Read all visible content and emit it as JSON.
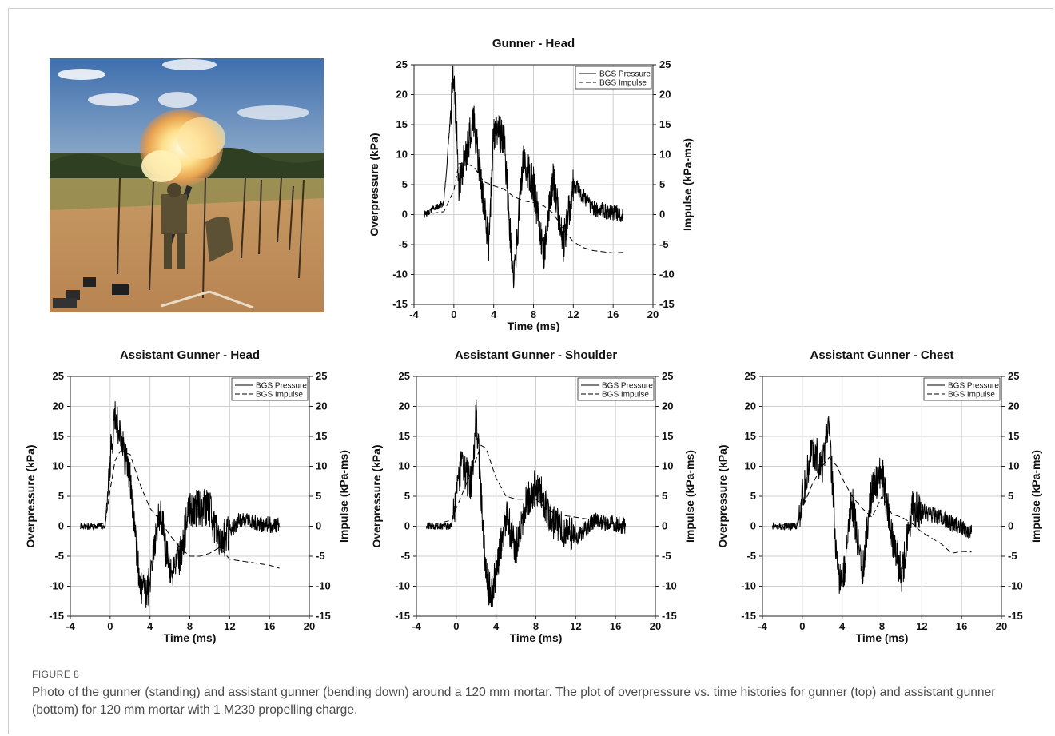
{
  "figure": {
    "label": "FIGURE 8",
    "caption": "Photo of the gunner (standing) and assistant gunner (bending down) around a 120 mm mortar. The plot of overpressure vs. time histories for gunner (top) and assistant gunner (bottom) for 120 mm mortar with 1 M230 propelling charge."
  },
  "photo": {
    "alt_icon": "mortar-firing-photo"
  },
  "chart_data": [
    {
      "id": "gunner-head",
      "type": "line",
      "title": "Gunner - Head",
      "xlabel": "Time (ms)",
      "ylabel": "Overpressure (kPa)",
      "y2label": "Impulse (kPa-ms)",
      "xlim": [
        -4,
        20
      ],
      "ylim": [
        -15,
        25
      ],
      "y2lim": [
        -15,
        25
      ],
      "xticks": [
        -4,
        0,
        4,
        8,
        12,
        16,
        20
      ],
      "yticks": [
        25,
        20,
        15,
        10,
        5,
        0,
        -5,
        -10,
        -15
      ],
      "grid": true,
      "legend": "top-right",
      "series": [
        {
          "name": "BGS Pressure",
          "style": "solid",
          "x": [
            -3,
            -1,
            0,
            0.5,
            2,
            3.5,
            4,
            5,
            6,
            7,
            8,
            9,
            10,
            11,
            12,
            14,
            17
          ],
          "y": [
            0,
            2,
            24,
            5,
            16,
            -5,
            14,
            13,
            -11,
            9,
            5,
            -7,
            6,
            -5,
            5,
            1,
            0
          ]
        },
        {
          "name": "BGS Impulse",
          "style": "dashed",
          "x": [
            -3,
            -1,
            0,
            0.5,
            1,
            2,
            3,
            4,
            5,
            6,
            7,
            8,
            9,
            10,
            11,
            12,
            13,
            14,
            15,
            16,
            17
          ],
          "y": [
            0,
            0.5,
            4,
            8.5,
            8.6,
            8,
            5.5,
            4.8,
            4.3,
            3,
            2.3,
            2,
            1.5,
            0.2,
            -2.5,
            -4.5,
            -5.5,
            -6,
            -6.2,
            -6.4,
            -6.3
          ]
        }
      ]
    },
    {
      "id": "assistant-head",
      "type": "line",
      "title": "Assistant Gunner - Head",
      "xlabel": "Time (ms)",
      "ylabel": "Overpressure (kPa)",
      "y2label": "Impulse (kPa-ms)",
      "xlim": [
        -4,
        20
      ],
      "ylim": [
        -15,
        25
      ],
      "y2lim": [
        -15,
        25
      ],
      "xticks": [
        -4,
        0,
        4,
        8,
        12,
        16,
        20
      ],
      "yticks": [
        25,
        20,
        15,
        10,
        5,
        0,
        -5,
        -10,
        -15
      ],
      "grid": true,
      "legend": "top-right",
      "series": [
        {
          "name": "BGS Pressure",
          "style": "solid",
          "x": [
            -3,
            -0.5,
            0,
            0.5,
            1,
            2,
            3,
            3.7,
            5,
            6,
            7,
            8,
            9,
            10,
            11,
            13,
            17
          ],
          "y": [
            0,
            0,
            11,
            19,
            15,
            8,
            -10,
            -12,
            3,
            -8,
            -5,
            3,
            3,
            3,
            -3,
            1,
            0
          ]
        },
        {
          "name": "BGS Impulse",
          "style": "dashed",
          "x": [
            -3,
            -0.5,
            0,
            0.5,
            1,
            2,
            3,
            4,
            5,
            6,
            7,
            8,
            9,
            10,
            11,
            12,
            14,
            16,
            17
          ],
          "y": [
            0,
            0.5,
            6,
            11,
            12.5,
            12,
            7,
            3,
            1,
            -1.5,
            -3.5,
            -5,
            -5,
            -4.5,
            -3.5,
            -5.5,
            -6,
            -6.5,
            -7
          ]
        }
      ]
    },
    {
      "id": "assistant-shoulder",
      "type": "line",
      "title": "Assistant Gunner - Shoulder",
      "xlabel": "Time (ms)",
      "ylabel": "Overpressure (kPa)",
      "y2label": "Impulse (kPa-ms)",
      "xlim": [
        -4,
        20
      ],
      "ylim": [
        -15,
        25
      ],
      "y2lim": [
        -15,
        25
      ],
      "xticks": [
        -4,
        0,
        4,
        8,
        12,
        16,
        20
      ],
      "yticks": [
        25,
        20,
        15,
        10,
        5,
        0,
        -5,
        -10,
        -15
      ],
      "grid": true,
      "legend": "top-right",
      "series": [
        {
          "name": "BGS Pressure",
          "style": "solid",
          "x": [
            -3,
            -0.5,
            0,
            0.5,
            1.5,
            2,
            3,
            3.5,
            5,
            6,
            7,
            8,
            10,
            12,
            14,
            17
          ],
          "y": [
            0,
            0,
            4,
            10,
            7,
            19,
            -8,
            -12,
            2,
            -4,
            4,
            7,
            0,
            -2,
            1,
            0
          ]
        },
        {
          "name": "BGS Impulse",
          "style": "dashed",
          "x": [
            -3,
            -0.5,
            0.5,
            1.5,
            2.5,
            3,
            4,
            5,
            6,
            7,
            8,
            9,
            10,
            12,
            14,
            16,
            17
          ],
          "y": [
            0,
            1,
            5,
            9,
            13.5,
            13,
            8,
            5,
            4.5,
            4.5,
            4.5,
            3,
            2,
            1.5,
            1,
            0.3,
            0
          ]
        }
      ]
    },
    {
      "id": "assistant-chest",
      "type": "line",
      "title": "Assistant Gunner - Chest",
      "xlabel": "Time (ms)",
      "ylabel": "Overpressure (kPa)",
      "y2label": "Impulse (kPa-ms)",
      "xlim": [
        -4,
        20
      ],
      "ylim": [
        -15,
        25
      ],
      "y2lim": [
        -15,
        25
      ],
      "xticks": [
        -4,
        0,
        4,
        8,
        12,
        16,
        20
      ],
      "yticks": [
        25,
        20,
        15,
        10,
        5,
        0,
        -5,
        -10,
        -15
      ],
      "grid": true,
      "legend": "top-right",
      "series": [
        {
          "name": "BGS Pressure",
          "style": "solid",
          "x": [
            -3,
            -0.5,
            0,
            1,
            2,
            2.7,
            3.5,
            4,
            5,
            6,
            7,
            8,
            9,
            10,
            11,
            13,
            17
          ],
          "y": [
            0,
            0,
            5,
            13,
            10,
            17,
            -7,
            -11,
            4,
            -8,
            6,
            9,
            -2,
            -8,
            3,
            2,
            -1
          ]
        },
        {
          "name": "BGS Impulse",
          "style": "dashed",
          "x": [
            -3,
            -0.5,
            0,
            1,
            2,
            2.7,
            3.5,
            4,
            5,
            6,
            7,
            8,
            9,
            10,
            11,
            12,
            13,
            14,
            15,
            16,
            17
          ],
          "y": [
            0,
            0.5,
            3,
            7,
            10,
            11.5,
            10,
            8,
            5,
            3,
            1.5,
            5,
            2,
            1.5,
            0.5,
            -1,
            -2,
            -3,
            -4.5,
            -4.2,
            -4.3
          ]
        }
      ]
    }
  ]
}
